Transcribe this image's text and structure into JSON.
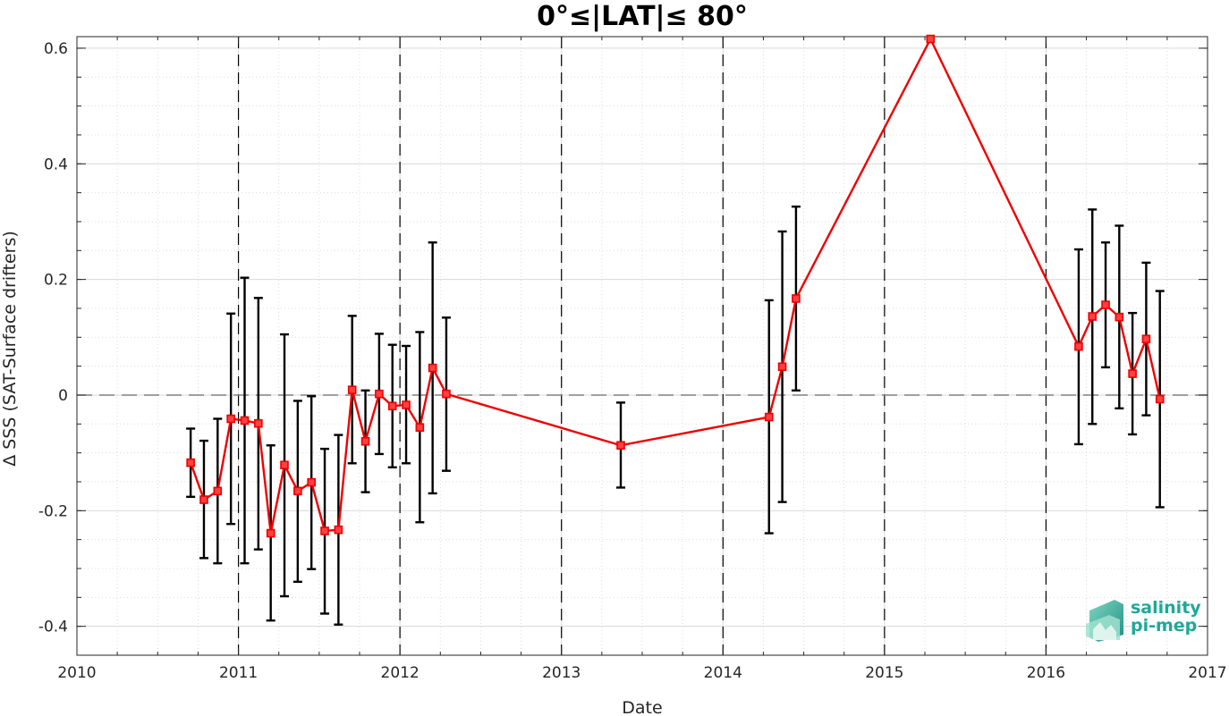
{
  "chart_data": {
    "type": "line",
    "title": "0°≤|LAT|≤ 80°",
    "xlabel": "Date",
    "ylabel": "Δ SSS (SAT-Surface drifters)",
    "xlim": [
      "2010-01-01",
      "2017-01-01"
    ],
    "ylim": [
      -0.45,
      0.62
    ],
    "x_ticks": [
      "2010",
      "2011",
      "2012",
      "2013",
      "2014",
      "2015",
      "2016",
      "2017"
    ],
    "y_ticks": [
      {
        "value": -0.4,
        "label": "-0.4"
      },
      {
        "value": -0.2,
        "label": "-0.2"
      },
      {
        "value": 0,
        "label": "0"
      },
      {
        "value": 0.2,
        "label": "0.2"
      },
      {
        "value": 0.4,
        "label": "0.4"
      },
      {
        "value": 0.6,
        "label": "0.6"
      }
    ],
    "grid": true,
    "zero_line": 0,
    "vertical_year_lines": [
      "2011",
      "2012",
      "2013",
      "2014",
      "2015",
      "2016"
    ],
    "colors": {
      "line": "#ee0000",
      "errorbar": "#000000",
      "grid": "#d9d9d9",
      "zero_line": "#808080",
      "year_lines": "#000000"
    },
    "series": [
      {
        "points": [
          {
            "x": "2010-09-15",
            "y": -0.117,
            "lo": -0.176,
            "hi": -0.058
          },
          {
            "x": "2010-10-15",
            "y": -0.181,
            "lo": -0.282,
            "hi": -0.079
          },
          {
            "x": "2010-11-15",
            "y": -0.166,
            "lo": -0.291,
            "hi": -0.041
          },
          {
            "x": "2010-12-15",
            "y": -0.041,
            "lo": -0.223,
            "hi": 0.141
          },
          {
            "x": "2011-01-15",
            "y": -0.044,
            "lo": -0.291,
            "hi": 0.203
          },
          {
            "x": "2011-02-15",
            "y": -0.049,
            "lo": -0.267,
            "hi": 0.168
          },
          {
            "x": "2011-03-15",
            "y": -0.239,
            "lo": -0.39,
            "hi": -0.087
          },
          {
            "x": "2011-04-15",
            "y": -0.121,
            "lo": -0.348,
            "hi": 0.105
          },
          {
            "x": "2011-05-15",
            "y": -0.166,
            "lo": -0.323,
            "hi": -0.01
          },
          {
            "x": "2011-06-15",
            "y": -0.151,
            "lo": -0.301,
            "hi": -0.002
          },
          {
            "x": "2011-07-15",
            "y": -0.235,
            "lo": -0.378,
            "hi": -0.093
          },
          {
            "x": "2011-08-15",
            "y": -0.233,
            "lo": -0.397,
            "hi": -0.069
          },
          {
            "x": "2011-09-15",
            "y": 0.009,
            "lo": -0.118,
            "hi": 0.137
          },
          {
            "x": "2011-10-15",
            "y": -0.08,
            "lo": -0.168,
            "hi": 0.008
          },
          {
            "x": "2011-11-15",
            "y": 0.002,
            "lo": -0.102,
            "hi": 0.106
          },
          {
            "x": "2011-12-15",
            "y": -0.019,
            "lo": -0.125,
            "hi": 0.087
          },
          {
            "x": "2012-01-15",
            "y": -0.017,
            "lo": -0.118,
            "hi": 0.085
          },
          {
            "x": "2012-02-15",
            "y": -0.056,
            "lo": -0.22,
            "hi": 0.109
          },
          {
            "x": "2012-03-15",
            "y": 0.047,
            "lo": -0.17,
            "hi": 0.264
          },
          {
            "x": "2012-04-15",
            "y": 0.002,
            "lo": -0.131,
            "hi": 0.134
          },
          {
            "x": "2013-05-15",
            "y": -0.087,
            "lo": -0.16,
            "hi": -0.013
          },
          {
            "x": "2014-04-15",
            "y": -0.038,
            "lo": -0.239,
            "hi": 0.164
          },
          {
            "x": "2014-05-15",
            "y": 0.049,
            "lo": -0.185,
            "hi": 0.283
          },
          {
            "x": "2014-06-15",
            "y": 0.167,
            "lo": 0.008,
            "hi": 0.326
          },
          {
            "x": "2015-04-15",
            "y": 0.616,
            "lo": null,
            "hi": null
          },
          {
            "x": "2016-03-15",
            "y": 0.084,
            "lo": -0.085,
            "hi": 0.252
          },
          {
            "x": "2016-04-15",
            "y": 0.136,
            "lo": -0.05,
            "hi": 0.321
          },
          {
            "x": "2016-05-15",
            "y": 0.156,
            "lo": 0.048,
            "hi": 0.264
          },
          {
            "x": "2016-06-15",
            "y": 0.135,
            "lo": -0.023,
            "hi": 0.293
          },
          {
            "x": "2016-07-15",
            "y": 0.037,
            "lo": -0.068,
            "hi": 0.142
          },
          {
            "x": "2016-08-15",
            "y": 0.097,
            "lo": -0.035,
            "hi": 0.229
          },
          {
            "x": "2016-09-15",
            "y": -0.007,
            "lo": -0.194,
            "hi": 0.18
          }
        ],
        "segments": [
          [
            "2010-09-15",
            "2012-04-15"
          ],
          [
            "2012-04-15",
            "2013-05-15"
          ],
          [
            "2013-05-15",
            "2014-06-15"
          ],
          [
            "2014-06-15",
            "2015-04-15"
          ],
          [
            "2015-04-15",
            "2016-03-15"
          ],
          [
            "2016-03-15",
            "2016-09-15"
          ]
        ]
      }
    ]
  },
  "logo": {
    "line1": "salinity",
    "line2": "pi-mep"
  }
}
